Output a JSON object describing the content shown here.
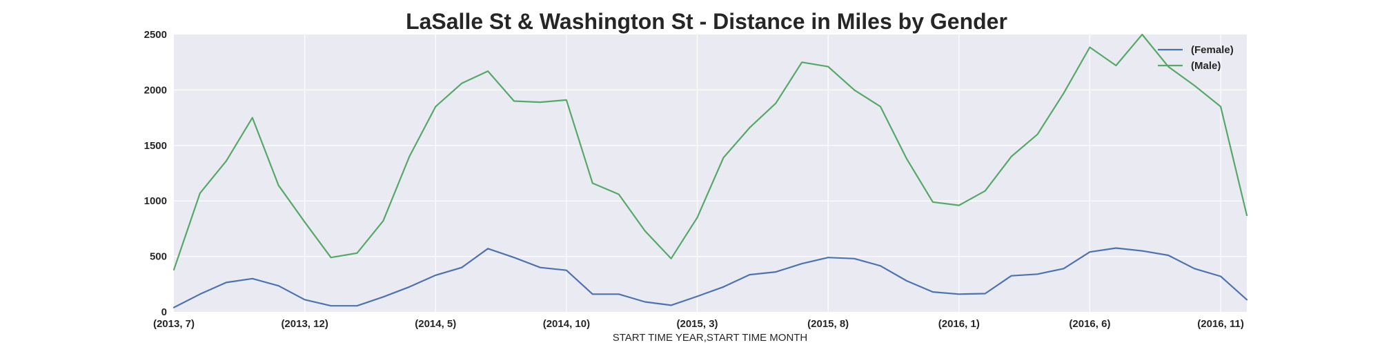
{
  "chart_data": {
    "type": "line",
    "title": "LaSalle St & Washington St - Distance in Miles by Gender",
    "xlabel": "START TIME YEAR,START TIME MONTH",
    "ylabel": "",
    "ylim": [
      0,
      2500
    ],
    "yticks": [
      "0",
      "500",
      "1000",
      "1500",
      "2000",
      "2500"
    ],
    "xtick_labels": [
      "(2013, 7)",
      "(2013, 12)",
      "(2014, 5)",
      "(2014, 10)",
      "(2015, 3)",
      "(2015, 8)",
      "(2016, 1)",
      "(2016, 6)",
      "(2016, 11)"
    ],
    "xtick_step": 5,
    "grid": true,
    "legend_position": "top-right",
    "categories": [
      "(2013, 7)",
      "(2013, 8)",
      "(2013, 9)",
      "(2013, 10)",
      "(2013, 11)",
      "(2013, 12)",
      "(2014, 1)",
      "(2014, 2)",
      "(2014, 3)",
      "(2014, 4)",
      "(2014, 5)",
      "(2014, 6)",
      "(2014, 7)",
      "(2014, 8)",
      "(2014, 9)",
      "(2014, 10)",
      "(2014, 11)",
      "(2014, 12)",
      "(2015, 1)",
      "(2015, 2)",
      "(2015, 3)",
      "(2015, 4)",
      "(2015, 5)",
      "(2015, 6)",
      "(2015, 7)",
      "(2015, 8)",
      "(2015, 9)",
      "(2015, 10)",
      "(2015, 11)",
      "(2015, 12)",
      "(2016, 1)",
      "(2016, 2)",
      "(2016, 3)",
      "(2016, 4)",
      "(2016, 5)",
      "(2016, 6)",
      "(2016, 7)",
      "(2016, 8)",
      "(2016, 9)",
      "(2016, 10)",
      "(2016, 11)",
      "(2016, 12)"
    ],
    "series": [
      {
        "name": "(Female)",
        "color": "#4c72b0",
        "values": [
          40,
          160,
          265,
          300,
          235,
          110,
          55,
          55,
          135,
          225,
          330,
          400,
          570,
          490,
          400,
          375,
          160,
          160,
          90,
          60,
          140,
          225,
          335,
          360,
          435,
          490,
          480,
          415,
          280,
          180,
          160,
          165,
          325,
          340,
          390,
          540,
          575,
          550,
          510,
          390,
          320,
          110
        ]
      },
      {
        "name": "(Male)",
        "color": "#55a868",
        "values": [
          380,
          1070,
          1360,
          1750,
          1140,
          810,
          490,
          530,
          820,
          1400,
          1850,
          2060,
          2170,
          1900,
          1890,
          1910,
          1160,
          1060,
          730,
          480,
          850,
          1390,
          1660,
          1880,
          2250,
          2210,
          2000,
          1850,
          1380,
          990,
          960,
          1090,
          1400,
          1600,
          1970,
          2385,
          2220,
          2500,
          2210,
          2040,
          1850,
          870
        ]
      }
    ]
  }
}
